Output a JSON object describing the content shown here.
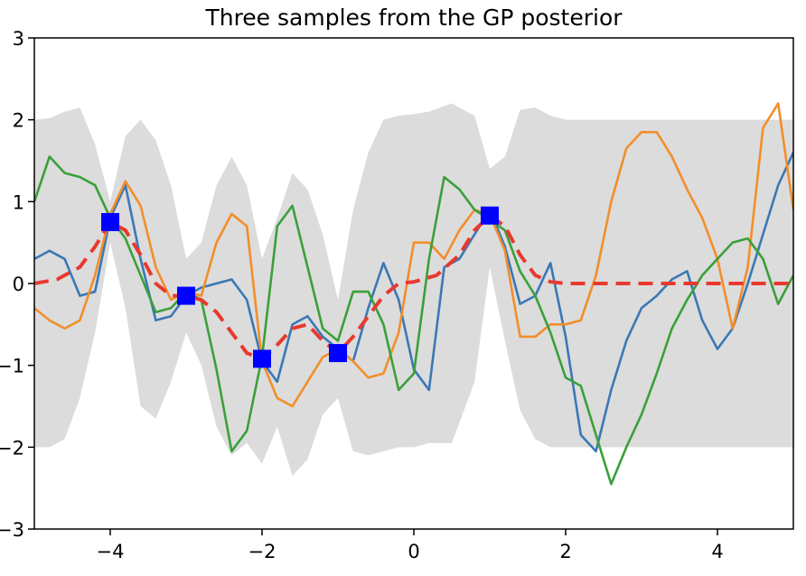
{
  "chart_data": {
    "type": "line",
    "title": "Three samples from the GP posterior",
    "xlabel": "",
    "ylabel": "",
    "xlim": [
      -5,
      5
    ],
    "ylim": [
      -3,
      3
    ],
    "xticks": [
      -4,
      -2,
      0,
      2,
      4
    ],
    "yticks": [
      -3,
      -2,
      -1,
      0,
      1,
      2,
      3
    ],
    "grid": false,
    "observations": {
      "color": "#0000ff",
      "x": [
        -4,
        -3,
        -2,
        -1,
        1
      ],
      "y": [
        0.75,
        -0.15,
        -0.92,
        -0.85,
        0.83
      ]
    },
    "mean": {
      "color": "#e8392f",
      "x": [
        -5.0,
        -4.7,
        -4.4,
        -4.2,
        -4.0,
        -3.8,
        -3.6,
        -3.4,
        -3.2,
        -3.0,
        -2.8,
        -2.6,
        -2.4,
        -2.2,
        -2.0,
        -1.8,
        -1.6,
        -1.4,
        -1.2,
        -1.0,
        -0.8,
        -0.6,
        -0.4,
        -0.2,
        0.0,
        0.3,
        0.6,
        0.8,
        1.0,
        1.2,
        1.4,
        1.6,
        1.8,
        2.0,
        5.0
      ],
      "y": [
        0.0,
        0.05,
        0.2,
        0.45,
        0.75,
        0.65,
        0.35,
        0.0,
        -0.15,
        -0.15,
        -0.2,
        -0.35,
        -0.6,
        -0.85,
        -0.92,
        -0.75,
        -0.55,
        -0.5,
        -0.7,
        -0.85,
        -0.65,
        -0.4,
        -0.15,
        0.0,
        0.02,
        0.1,
        0.35,
        0.65,
        0.83,
        0.7,
        0.35,
        0.1,
        0.02,
        0.0,
        0.0
      ]
    },
    "confidence_band": {
      "color": "#dcdcdc",
      "x": [
        -5.0,
        -4.8,
        -4.6,
        -4.4,
        -4.2,
        -4.0,
        -3.8,
        -3.6,
        -3.4,
        -3.2,
        -3.0,
        -2.8,
        -2.6,
        -2.4,
        -2.2,
        -2.0,
        -1.8,
        -1.6,
        -1.4,
        -1.2,
        -1.0,
        -0.8,
        -0.6,
        -0.4,
        -0.2,
        0.0,
        0.2,
        0.5,
        0.8,
        1.0,
        1.2,
        1.4,
        1.6,
        1.8,
        2.0,
        2.5,
        3.0,
        5.0
      ],
      "upper": [
        2.0,
        2.02,
        2.1,
        2.15,
        1.7,
        1.0,
        1.8,
        2.0,
        1.75,
        1.2,
        0.3,
        0.5,
        1.2,
        1.55,
        1.2,
        0.3,
        0.8,
        1.35,
        1.15,
        0.6,
        -0.2,
        0.9,
        1.6,
        2.0,
        2.05,
        2.07,
        2.1,
        2.2,
        2.05,
        1.4,
        1.55,
        2.12,
        2.15,
        2.05,
        2.0,
        2.0,
        2.0,
        2.0
      ],
      "lower": [
        -2.0,
        -2.0,
        -1.9,
        -1.4,
        -0.6,
        0.5,
        -0.3,
        -1.5,
        -1.65,
        -1.2,
        -0.6,
        -1.0,
        -1.75,
        -2.1,
        -1.95,
        -2.2,
        -1.75,
        -2.35,
        -2.15,
        -1.6,
        -1.4,
        -2.05,
        -2.1,
        -2.05,
        -2.0,
        -2.0,
        -1.95,
        -1.95,
        -1.2,
        0.2,
        -0.7,
        -1.55,
        -1.9,
        -2.0,
        -2.0,
        -2.0,
        -2.0,
        -2.0
      ]
    },
    "series": [
      {
        "color": "#3b78b5",
        "x": [
          -5.0,
          -4.8,
          -4.6,
          -4.4,
          -4.2,
          -4.0,
          -3.8,
          -3.6,
          -3.4,
          -3.2,
          -3.0,
          -2.8,
          -2.6,
          -2.4,
          -2.2,
          -2.0,
          -1.8,
          -1.6,
          -1.4,
          -1.2,
          -1.0,
          -0.8,
          -0.6,
          -0.4,
          -0.2,
          0.0,
          0.2,
          0.4,
          0.6,
          0.8,
          1.0,
          1.2,
          1.4,
          1.6,
          1.8,
          2.0,
          2.2,
          2.4,
          2.6,
          2.8,
          3.0,
          3.2,
          3.4,
          3.6,
          3.8,
          4.0,
          4.2,
          4.4,
          4.6,
          4.8,
          5.0
        ],
        "y": [
          0.3,
          0.4,
          0.3,
          -0.15,
          -0.1,
          0.8,
          1.2,
          0.3,
          -0.45,
          -0.4,
          -0.15,
          -0.05,
          0.0,
          0.05,
          -0.2,
          -0.95,
          -1.2,
          -0.5,
          -0.4,
          -0.65,
          -0.8,
          -0.95,
          -0.3,
          0.25,
          -0.2,
          -1.05,
          -1.3,
          0.2,
          0.3,
          0.6,
          0.9,
          0.45,
          -0.25,
          -0.15,
          0.25,
          -0.65,
          -1.85,
          -2.05,
          -1.3,
          -0.7,
          -0.3,
          -0.15,
          0.05,
          0.15,
          -0.45,
          -0.8,
          -0.55,
          0.0,
          0.6,
          1.2,
          1.6
        ]
      },
      {
        "color": "#f28e2b",
        "x": [
          -5.0,
          -4.8,
          -4.6,
          -4.4,
          -4.2,
          -4.0,
          -3.8,
          -3.6,
          -3.4,
          -3.2,
          -3.0,
          -2.8,
          -2.6,
          -2.4,
          -2.2,
          -2.0,
          -1.8,
          -1.6,
          -1.4,
          -1.2,
          -1.0,
          -0.8,
          -0.6,
          -0.4,
          -0.2,
          0.0,
          0.2,
          0.4,
          0.6,
          0.8,
          1.0,
          1.2,
          1.4,
          1.6,
          1.8,
          2.0,
          2.2,
          2.4,
          2.6,
          2.8,
          3.0,
          3.2,
          3.4,
          3.6,
          3.8,
          4.0,
          4.2,
          4.4,
          4.6,
          4.8,
          5.0
        ],
        "y": [
          -0.3,
          -0.45,
          -0.55,
          -0.45,
          0.1,
          0.85,
          1.25,
          0.95,
          0.2,
          -0.2,
          -0.1,
          -0.15,
          0.5,
          0.85,
          0.7,
          -0.95,
          -1.4,
          -1.5,
          -1.2,
          -0.9,
          -0.8,
          -0.95,
          -1.15,
          -1.1,
          -0.6,
          0.5,
          0.5,
          0.3,
          0.65,
          0.9,
          0.85,
          0.4,
          -0.65,
          -0.65,
          -0.5,
          -0.5,
          -0.45,
          0.1,
          1.0,
          1.65,
          1.85,
          1.85,
          1.55,
          1.15,
          0.8,
          0.3,
          -0.55,
          0.2,
          1.9,
          2.2,
          0.9
        ]
      },
      {
        "color": "#3aa03a",
        "x": [
          -5.0,
          -4.8,
          -4.6,
          -4.4,
          -4.2,
          -4.0,
          -3.8,
          -3.6,
          -3.4,
          -3.2,
          -3.0,
          -2.8,
          -2.6,
          -2.4,
          -2.2,
          -2.0,
          -1.8,
          -1.6,
          -1.4,
          -1.2,
          -1.0,
          -0.8,
          -0.6,
          -0.4,
          -0.2,
          0.0,
          0.2,
          0.4,
          0.6,
          0.8,
          1.0,
          1.2,
          1.4,
          1.6,
          1.8,
          2.0,
          2.2,
          2.4,
          2.6,
          2.8,
          3.0,
          3.2,
          3.4,
          3.6,
          3.8,
          4.0,
          4.2,
          4.4,
          4.6,
          4.8,
          5.0
        ],
        "y": [
          1.0,
          1.55,
          1.35,
          1.3,
          1.2,
          0.8,
          0.55,
          0.1,
          -0.35,
          -0.3,
          -0.1,
          -0.2,
          -1.05,
          -2.05,
          -1.8,
          -0.9,
          0.7,
          0.95,
          0.2,
          -0.55,
          -0.7,
          -0.1,
          -0.1,
          -0.5,
          -1.3,
          -1.1,
          0.3,
          1.3,
          1.15,
          0.9,
          0.78,
          0.65,
          0.15,
          -0.15,
          -0.6,
          -1.15,
          -1.25,
          -1.85,
          -2.45,
          -2.0,
          -1.6,
          -1.1,
          -0.55,
          -0.2,
          0.1,
          0.3,
          0.5,
          0.55,
          0.3,
          -0.25,
          0.1
        ]
      }
    ]
  }
}
